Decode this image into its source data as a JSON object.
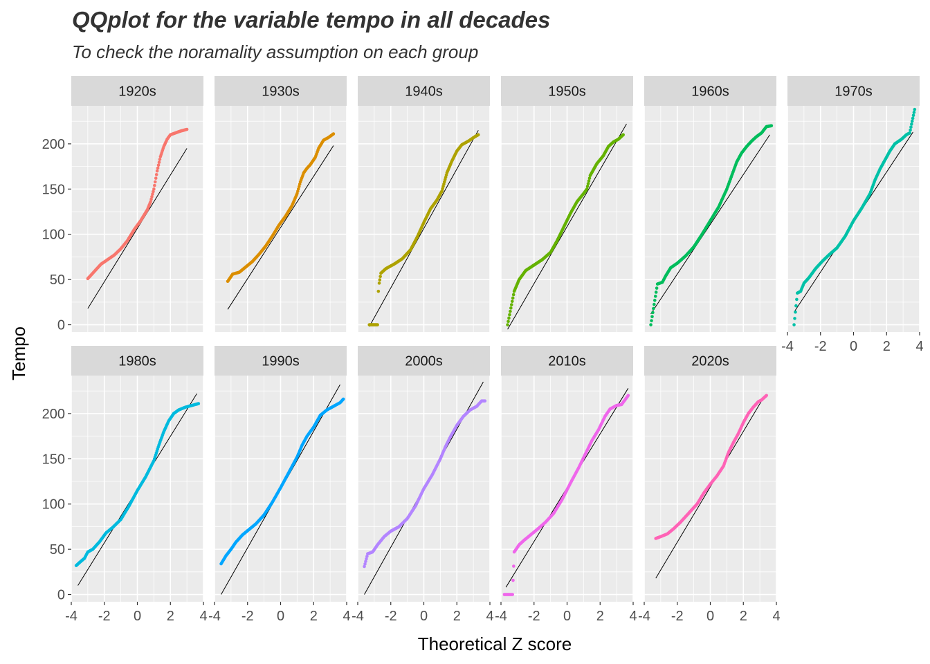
{
  "chart_data": {
    "type": "scatter",
    "subtype": "faceted-qq-plot",
    "title": "QQplot for the variable tempo in all decades",
    "subtitle": "To check the noramality assumption on each group",
    "xlabel": "Theoretical Z score",
    "ylabel": "Tempo",
    "xlim": [
      -4,
      4
    ],
    "ylim": [
      -8,
      242
    ],
    "x_ticks": [
      -4,
      -2,
      0,
      2,
      4
    ],
    "x_tick_labels": [
      "-4",
      "-2",
      "0",
      "2",
      "4"
    ],
    "y_ticks": [
      0,
      50,
      100,
      150,
      200
    ],
    "y_tick_labels": [
      "0",
      "50",
      "100",
      "150",
      "200"
    ],
    "grid": true,
    "legend": "none",
    "facets": [
      {
        "name": "1920s",
        "color": "#F8766D",
        "zmax": 3.0,
        "line": [
          [
            -3.0,
            18
          ],
          [
            3.0,
            195
          ]
        ],
        "points": [
          [
            -3.0,
            51
          ],
          [
            -2.6,
            59
          ],
          [
            -2.2,
            67
          ],
          [
            -1.8,
            72
          ],
          [
            -1.4,
            77
          ],
          [
            -1.0,
            84
          ],
          [
            -0.6,
            93
          ],
          [
            -0.2,
            105
          ],
          [
            0.2,
            115
          ],
          [
            0.6,
            127
          ],
          [
            0.8,
            136
          ],
          [
            1.0,
            150
          ],
          [
            1.2,
            170
          ],
          [
            1.4,
            186
          ],
          [
            1.6,
            197
          ],
          [
            1.8,
            205
          ],
          [
            2.0,
            210
          ],
          [
            2.3,
            212
          ],
          [
            2.6,
            214
          ],
          [
            3.0,
            216
          ]
        ]
      },
      {
        "name": "1930s",
        "color": "#DB8E00",
        "zmax": 3.2,
        "line": [
          [
            -3.2,
            17
          ],
          [
            3.2,
            198
          ]
        ],
        "points": [
          [
            -3.2,
            48
          ],
          [
            -2.9,
            56
          ],
          [
            -2.5,
            58
          ],
          [
            -2.1,
            64
          ],
          [
            -1.7,
            70
          ],
          [
            -1.3,
            78
          ],
          [
            -0.9,
            87
          ],
          [
            -0.5,
            98
          ],
          [
            -0.1,
            110
          ],
          [
            0.3,
            120
          ],
          [
            0.7,
            132
          ],
          [
            1.0,
            145
          ],
          [
            1.2,
            158
          ],
          [
            1.4,
            168
          ],
          [
            1.6,
            173
          ],
          [
            1.8,
            177
          ],
          [
            2.1,
            185
          ],
          [
            2.3,
            195
          ],
          [
            2.6,
            204
          ],
          [
            2.9,
            207
          ],
          [
            3.2,
            211
          ]
        ]
      },
      {
        "name": "1940s",
        "color": "#AEA200",
        "zmax": 3.4,
        "line": [
          [
            -3.3,
            -2
          ],
          [
            3.3,
            215
          ]
        ],
        "points": [
          [
            -3.3,
            0
          ],
          [
            -3.0,
            0
          ],
          [
            -2.8,
            0
          ],
          [
            -2.75,
            37
          ],
          [
            -2.7,
            46
          ],
          [
            -2.6,
            57
          ],
          [
            -2.3,
            62
          ],
          [
            -1.8,
            67
          ],
          [
            -1.3,
            73
          ],
          [
            -0.8,
            83
          ],
          [
            -0.4,
            97
          ],
          [
            0.0,
            113
          ],
          [
            0.4,
            128
          ],
          [
            0.8,
            138
          ],
          [
            1.1,
            148
          ],
          [
            1.4,
            168
          ],
          [
            1.7,
            181
          ],
          [
            2.0,
            192
          ],
          [
            2.3,
            199
          ],
          [
            2.7,
            203
          ],
          [
            3.1,
            208
          ],
          [
            3.3,
            210
          ]
        ]
      },
      {
        "name": "1950s",
        "color": "#64B200",
        "zmax": 3.6,
        "line": [
          [
            -3.6,
            -5
          ],
          [
            3.6,
            222
          ]
        ],
        "points": [
          [
            -3.6,
            0
          ],
          [
            -3.2,
            37
          ],
          [
            -2.9,
            50
          ],
          [
            -2.5,
            60
          ],
          [
            -2.0,
            66
          ],
          [
            -1.5,
            72
          ],
          [
            -1.0,
            80
          ],
          [
            -0.6,
            93
          ],
          [
            -0.2,
            108
          ],
          [
            0.2,
            123
          ],
          [
            0.6,
            136
          ],
          [
            1.0,
            145
          ],
          [
            1.2,
            150
          ],
          [
            1.4,
            165
          ],
          [
            1.8,
            178
          ],
          [
            2.2,
            187
          ],
          [
            2.5,
            197
          ],
          [
            2.8,
            202
          ],
          [
            3.1,
            205
          ],
          [
            3.4,
            210
          ]
        ]
      },
      {
        "name": "1960s",
        "color": "#00BD5C",
        "zmax": 3.7,
        "line": [
          [
            -3.6,
            12
          ],
          [
            3.6,
            210
          ]
        ],
        "points": [
          [
            -3.6,
            0
          ],
          [
            -3.2,
            45
          ],
          [
            -2.9,
            47
          ],
          [
            -2.7,
            54
          ],
          [
            -2.4,
            63
          ],
          [
            -2.0,
            68
          ],
          [
            -1.5,
            76
          ],
          [
            -1.0,
            86
          ],
          [
            -0.5,
            100
          ],
          [
            0.0,
            115
          ],
          [
            0.5,
            130
          ],
          [
            1.0,
            150
          ],
          [
            1.3,
            165
          ],
          [
            1.6,
            180
          ],
          [
            1.9,
            190
          ],
          [
            2.2,
            197
          ],
          [
            2.5,
            203
          ],
          [
            2.8,
            208
          ],
          [
            3.1,
            212
          ],
          [
            3.4,
            219
          ],
          [
            3.7,
            220
          ]
        ]
      },
      {
        "name": "1970s",
        "color": "#00C1A7",
        "zmax": 3.7,
        "line": [
          [
            -3.6,
            14
          ],
          [
            3.6,
            213
          ]
        ],
        "points": [
          [
            -3.6,
            0
          ],
          [
            -3.4,
            35
          ],
          [
            -3.2,
            37
          ],
          [
            -3.0,
            46
          ],
          [
            -2.7,
            52
          ],
          [
            -2.3,
            62
          ],
          [
            -1.9,
            70
          ],
          [
            -1.5,
            77
          ],
          [
            -1.0,
            85
          ],
          [
            -0.5,
            98
          ],
          [
            0.0,
            115
          ],
          [
            0.5,
            129
          ],
          [
            1.0,
            145
          ],
          [
            1.3,
            160
          ],
          [
            1.6,
            172
          ],
          [
            1.9,
            182
          ],
          [
            2.2,
            192
          ],
          [
            2.5,
            200
          ],
          [
            2.9,
            205
          ],
          [
            3.2,
            210
          ],
          [
            3.4,
            212
          ],
          [
            3.7,
            238
          ]
        ]
      },
      {
        "name": "1980s",
        "color": "#00BADE",
        "zmax": 3.8,
        "line": [
          [
            -3.6,
            10
          ],
          [
            3.6,
            222
          ]
        ],
        "points": [
          [
            -3.7,
            32
          ],
          [
            -3.4,
            37
          ],
          [
            -3.2,
            40
          ],
          [
            -3.0,
            47
          ],
          [
            -2.7,
            50
          ],
          [
            -2.3,
            58
          ],
          [
            -1.9,
            68
          ],
          [
            -1.5,
            74
          ],
          [
            -1.0,
            83
          ],
          [
            -0.5,
            98
          ],
          [
            0.0,
            115
          ],
          [
            0.5,
            130
          ],
          [
            1.0,
            148
          ],
          [
            1.3,
            165
          ],
          [
            1.6,
            180
          ],
          [
            1.9,
            192
          ],
          [
            2.2,
            200
          ],
          [
            2.5,
            204
          ],
          [
            2.9,
            207
          ],
          [
            3.3,
            209
          ],
          [
            3.7,
            211
          ]
        ]
      },
      {
        "name": "1990s",
        "color": "#00A6FF",
        "zmax": 3.8,
        "line": [
          [
            -3.6,
            0
          ],
          [
            3.6,
            232
          ]
        ],
        "points": [
          [
            -3.6,
            34
          ],
          [
            -3.3,
            43
          ],
          [
            -3.0,
            50
          ],
          [
            -2.7,
            58
          ],
          [
            -2.3,
            66
          ],
          [
            -1.9,
            72
          ],
          [
            -1.5,
            78
          ],
          [
            -1.0,
            88
          ],
          [
            -0.5,
            102
          ],
          [
            0.0,
            118
          ],
          [
            0.5,
            135
          ],
          [
            1.0,
            152
          ],
          [
            1.3,
            165
          ],
          [
            1.6,
            175
          ],
          [
            2.0,
            185
          ],
          [
            2.4,
            198
          ],
          [
            2.8,
            204
          ],
          [
            3.2,
            208
          ],
          [
            3.6,
            212
          ],
          [
            3.8,
            216
          ]
        ]
      },
      {
        "name": "2000s",
        "color": "#B385FF",
        "zmax": 3.7,
        "line": [
          [
            -3.6,
            0
          ],
          [
            3.6,
            235
          ]
        ],
        "points": [
          [
            -3.6,
            31
          ],
          [
            -3.4,
            45
          ],
          [
            -3.1,
            47
          ],
          [
            -2.8,
            55
          ],
          [
            -2.4,
            64
          ],
          [
            -2.0,
            70
          ],
          [
            -1.5,
            75
          ],
          [
            -1.0,
            84
          ],
          [
            -0.5,
            98
          ],
          [
            0.0,
            117
          ],
          [
            0.5,
            132
          ],
          [
            1.0,
            150
          ],
          [
            1.3,
            163
          ],
          [
            1.6,
            174
          ],
          [
            2.0,
            187
          ],
          [
            2.4,
            197
          ],
          [
            2.8,
            204
          ],
          [
            3.2,
            208
          ],
          [
            3.5,
            214
          ],
          [
            3.7,
            214
          ]
        ]
      },
      {
        "name": "2010s",
        "color": "#EF67EB",
        "zmax": 3.8,
        "line": [
          [
            -3.7,
            8
          ],
          [
            3.7,
            228
          ]
        ],
        "points": [
          [
            -3.8,
            0
          ],
          [
            -3.5,
            0
          ],
          [
            -3.3,
            0
          ],
          [
            -3.2,
            47
          ],
          [
            -2.9,
            55
          ],
          [
            -2.6,
            60
          ],
          [
            -2.2,
            66
          ],
          [
            -1.8,
            72
          ],
          [
            -1.3,
            80
          ],
          [
            -0.8,
            90
          ],
          [
            -0.3,
            105
          ],
          [
            0.2,
            123
          ],
          [
            0.7,
            140
          ],
          [
            1.1,
            155
          ],
          [
            1.5,
            170
          ],
          [
            1.9,
            182
          ],
          [
            2.3,
            197
          ],
          [
            2.6,
            205
          ],
          [
            3.0,
            209
          ],
          [
            3.3,
            210
          ],
          [
            3.7,
            220
          ]
        ]
      },
      {
        "name": "2020s",
        "color": "#FF63B6",
        "zmax": 3.4,
        "line": [
          [
            -3.3,
            18
          ],
          [
            3.3,
            220
          ]
        ],
        "points": [
          [
            -3.3,
            62
          ],
          [
            -3.0,
            64
          ],
          [
            -2.6,
            67
          ],
          [
            -2.2,
            73
          ],
          [
            -1.8,
            80
          ],
          [
            -1.3,
            90
          ],
          [
            -0.8,
            100
          ],
          [
            -0.4,
            112
          ],
          [
            0.0,
            122
          ],
          [
            0.4,
            131
          ],
          [
            0.8,
            142
          ],
          [
            1.1,
            157
          ],
          [
            1.4,
            168
          ],
          [
            1.7,
            178
          ],
          [
            2.0,
            190
          ],
          [
            2.3,
            200
          ],
          [
            2.6,
            207
          ],
          [
            2.9,
            213
          ],
          [
            3.1,
            215
          ],
          [
            3.4,
            220
          ]
        ]
      }
    ]
  }
}
